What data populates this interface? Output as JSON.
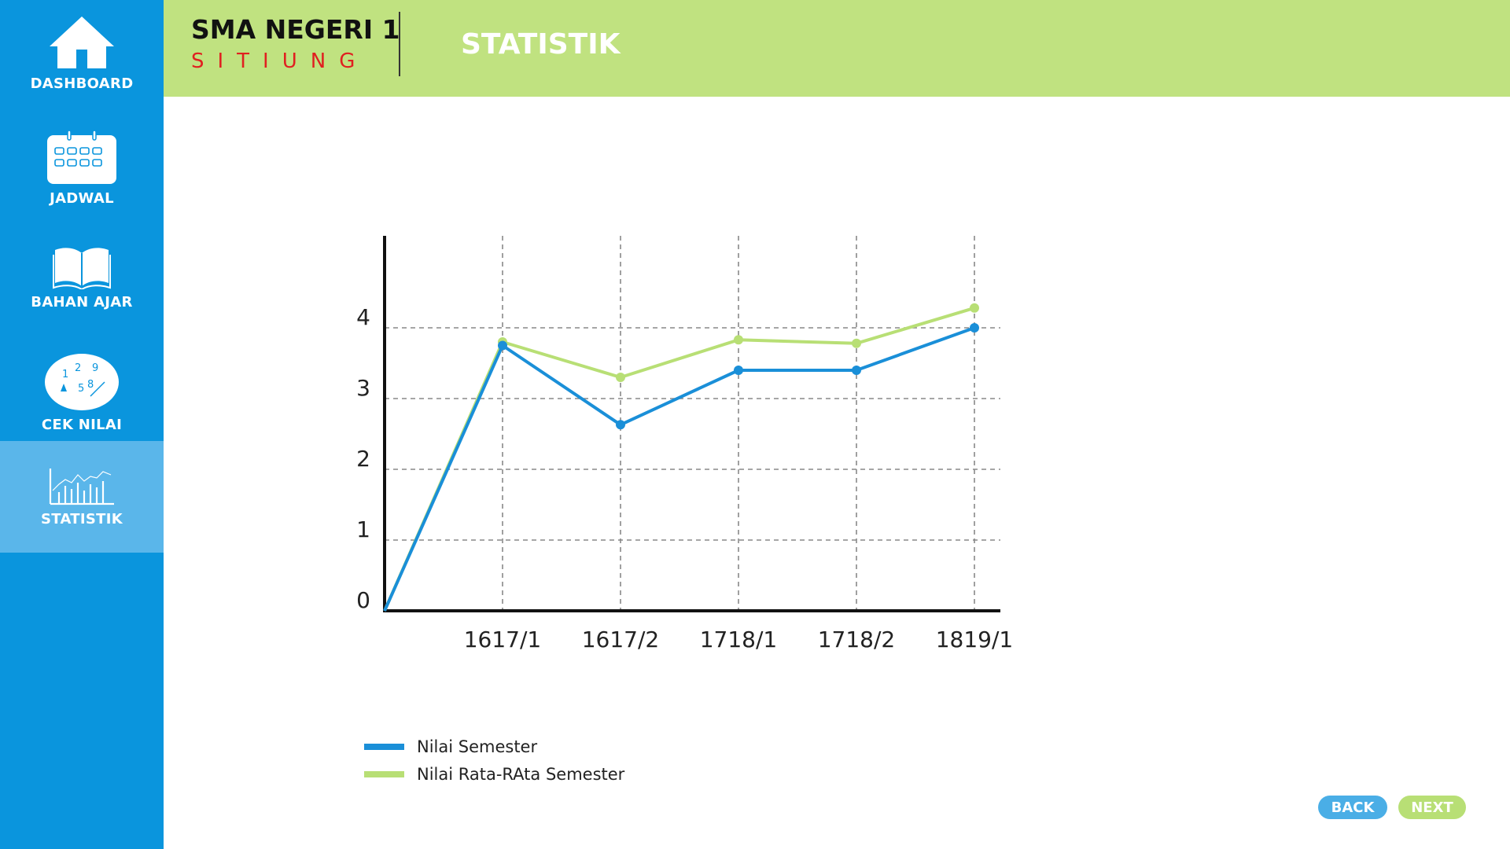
{
  "school": {
    "name": "SMA NEGERI 1",
    "location": "SITIUNG"
  },
  "page": {
    "title": "STATISTIK"
  },
  "sidebar": {
    "items": [
      {
        "label": "DASHBOARD",
        "icon": "home-icon"
      },
      {
        "label": "JADWAL",
        "icon": "calendar-icon"
      },
      {
        "label": "BAHAN AJAR",
        "icon": "book-icon"
      },
      {
        "label": "CEK NILAI",
        "icon": "numbers-icon"
      },
      {
        "label": "STATISTIK",
        "icon": "bar-chart-icon",
        "active": true
      }
    ]
  },
  "chart_data": {
    "type": "line",
    "title": "",
    "xlabel": "",
    "ylabel": "",
    "categories": [
      "",
      "1617/1",
      "1617/2",
      "1718/1",
      "1718/2",
      "1819/1"
    ],
    "y_ticks": [
      "0",
      "1",
      "2",
      "3",
      "4"
    ],
    "ylim": [
      0,
      5
    ],
    "grid": true,
    "legend_position": "bottom-left",
    "series": [
      {
        "name": "Nilai Semester",
        "color": "#1a8fd8",
        "values": [
          0,
          3.75,
          2.63,
          3.4,
          3.4,
          4.0
        ]
      },
      {
        "name": "Nilai Rata-RAta Semester",
        "color": "#b8df75",
        "values": [
          0,
          3.8,
          3.3,
          3.83,
          3.78,
          4.28
        ]
      }
    ]
  },
  "buttons": {
    "back": "BACK",
    "next": "NEXT"
  },
  "colors": {
    "sidebar": "#0a95dd",
    "sidebar_active": "#5ab6ea",
    "header": "#c0e280",
    "accent_red": "#e02020"
  }
}
